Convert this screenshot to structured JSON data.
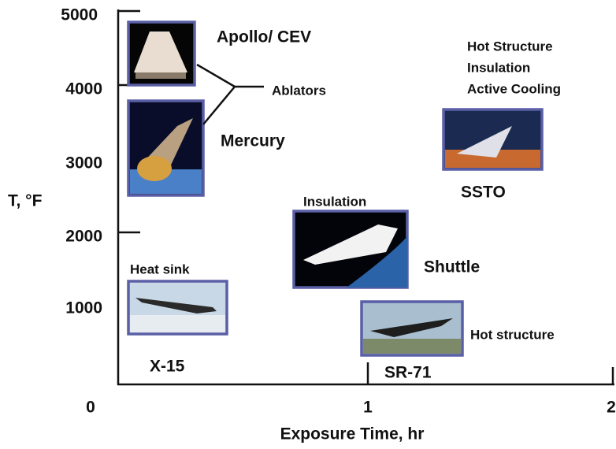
{
  "y_axis": {
    "label": "T, °F",
    "ticks": [
      5000,
      4000,
      3000,
      2000,
      1000
    ]
  },
  "x_axis": {
    "label": "Exposure Time, hr",
    "ticks": [
      0,
      1,
      2
    ]
  },
  "vehicles": [
    {
      "name": "Apollo/ CEV"
    },
    {
      "name": "Mercury"
    },
    {
      "name": "X-15",
      "note": "Heat sink"
    },
    {
      "name": "Shuttle",
      "note": "Insulation"
    },
    {
      "name": "SR-71",
      "note": "Hot structure"
    },
    {
      "name": "SSTO",
      "note": [
        "Hot Structure",
        "Insulation",
        "Active Cooling"
      ]
    }
  ],
  "group_label": "Ablators"
}
